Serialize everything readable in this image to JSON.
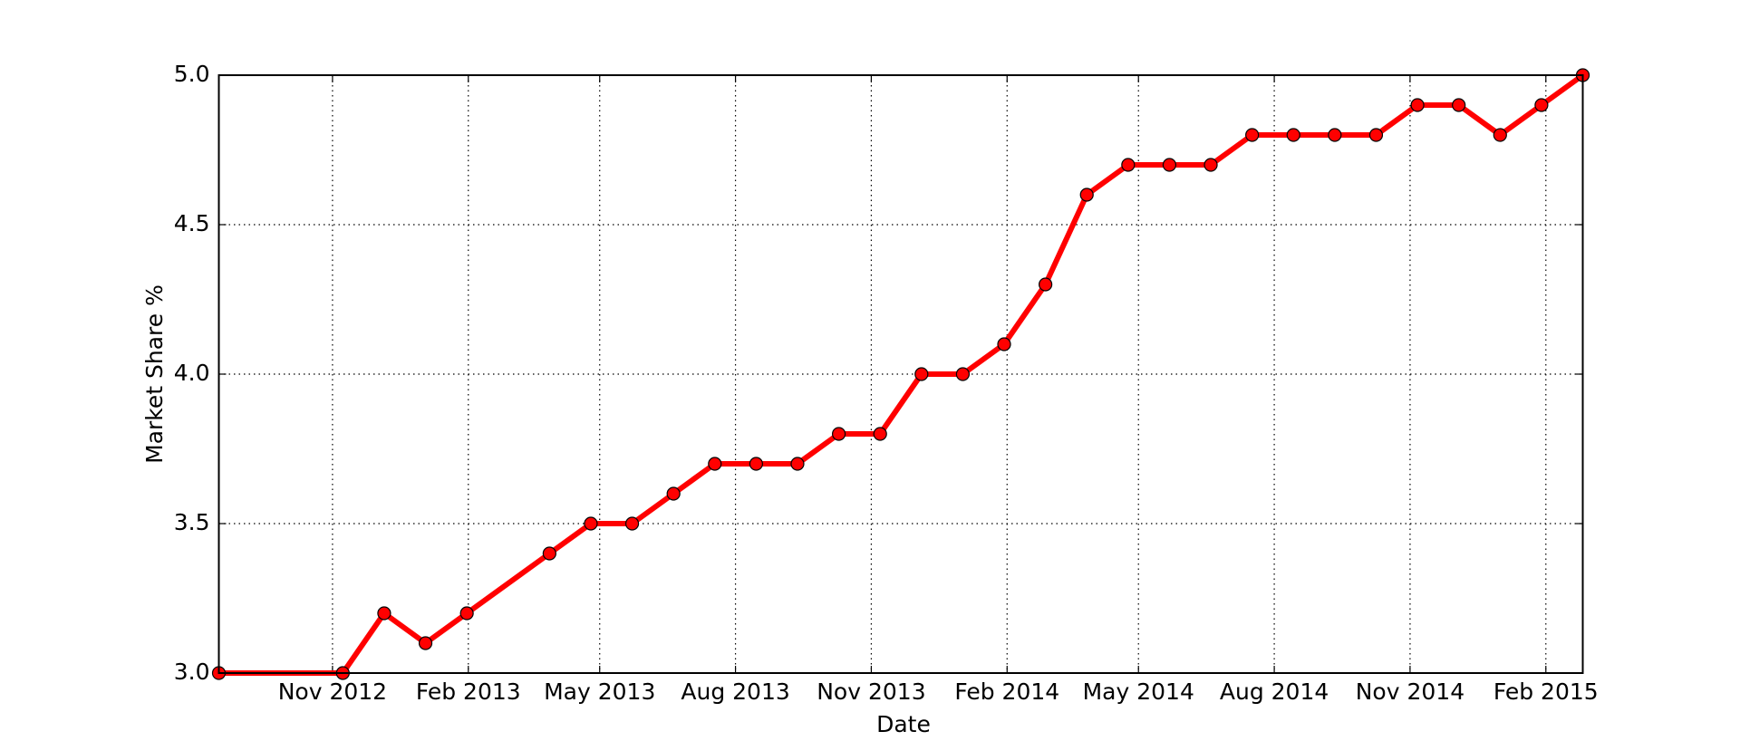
{
  "chart_data": {
    "type": "line",
    "x_label": "Date",
    "y_label": "Market Share %",
    "x": [
      "2012-08-16",
      "2012-11-08",
      "2012-12-06",
      "2013-01-03",
      "2013-01-31",
      "2013-03-28",
      "2013-04-25",
      "2013-05-23",
      "2013-06-20",
      "2013-07-18",
      "2013-08-15",
      "2013-09-12",
      "2013-10-10",
      "2013-11-07",
      "2013-12-05",
      "2014-01-02",
      "2014-01-30",
      "2014-02-27",
      "2014-03-27",
      "2014-04-24",
      "2014-05-22",
      "2014-06-19",
      "2014-07-17",
      "2014-08-14",
      "2014-09-11",
      "2014-10-09",
      "2014-11-06",
      "2014-12-04",
      "2015-01-01",
      "2015-01-29",
      "2015-02-26"
    ],
    "series": [
      {
        "color": "#ff0000",
        "values": [
          3.0,
          3.0,
          3.2,
          3.1,
          3.2,
          3.4,
          3.5,
          3.5,
          3.6,
          3.7,
          3.7,
          3.7,
          3.8,
          3.8,
          4.0,
          4.0,
          4.1,
          4.3,
          4.6,
          4.7,
          4.7,
          4.7,
          4.8,
          4.8,
          4.8,
          4.8,
          4.9,
          4.9,
          4.8,
          4.9,
          5.0
        ]
      }
    ],
    "xlim": [
      "2012-08-16",
      "2015-02-26"
    ],
    "xticks": [
      {
        "value": "2012-11",
        "label": "Nov 2012"
      },
      {
        "value": "2013-02",
        "label": "Feb 2013"
      },
      {
        "value": "2013-05",
        "label": "May 2013"
      },
      {
        "value": "2013-08",
        "label": "Aug 2013"
      },
      {
        "value": "2013-11",
        "label": "Nov 2013"
      },
      {
        "value": "2014-02",
        "label": "Feb 2014"
      },
      {
        "value": "2014-05",
        "label": "May 2014"
      },
      {
        "value": "2014-08",
        "label": "Aug 2014"
      },
      {
        "value": "2014-11",
        "label": "Nov 2014"
      },
      {
        "value": "2015-02",
        "label": "Feb 2015"
      }
    ],
    "ylim": [
      3.0,
      5.0
    ],
    "yticks": [
      {
        "value": 3.0,
        "label": "3.0"
      },
      3.5,
      {
        "value": 4.0,
        "label": "4.0"
      },
      4.5,
      {
        "value": 5.0,
        "label": "5.0"
      }
    ],
    "grid": true
  }
}
